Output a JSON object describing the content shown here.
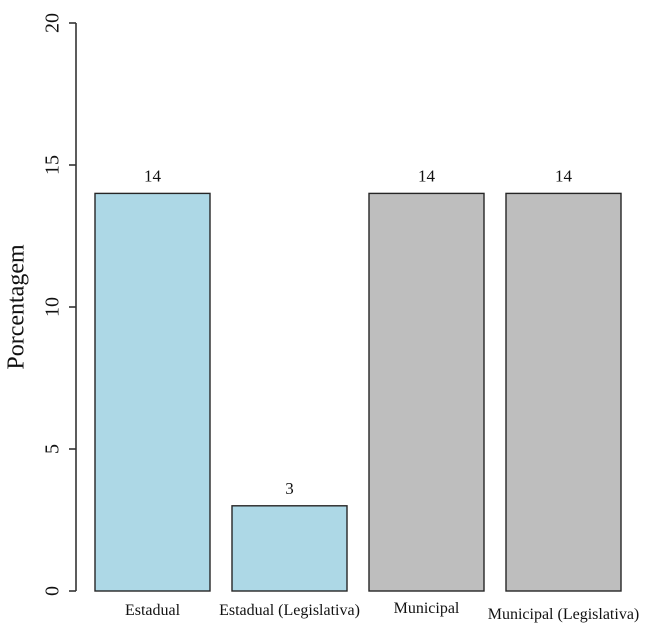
{
  "chart_data": {
    "type": "bar",
    "title": "",
    "xlabel": "",
    "ylabel": "Porcentagem",
    "categories": [
      "Estadual",
      "Estadual (Legislativa)",
      "Municipal",
      "Municipal (Legislativa)"
    ],
    "values": [
      14,
      3,
      14,
      14
    ],
    "bar_value_labels": [
      "14",
      "3",
      "14",
      "14"
    ],
    "ylim": [
      0,
      20
    ],
    "yticks": [
      0,
      5,
      10,
      15,
      20
    ],
    "ytick_labels": [
      "0",
      "5",
      "10",
      "15",
      "20"
    ],
    "grid": false,
    "legend": null,
    "tick_label_orientation": "rotated-90",
    "bar_colors": [
      "#ADD8E6",
      "#ADD8E6",
      "#BEBEBE",
      "#BEBEBE"
    ],
    "bar_border_color": "#262626",
    "axis_color": "#333333",
    "text_color": "#111111",
    "background_color": "#FFFFFF"
  }
}
